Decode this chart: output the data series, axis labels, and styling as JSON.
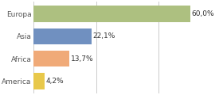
{
  "categories": [
    "America",
    "Africa",
    "Asia",
    "Europa"
  ],
  "values": [
    4.2,
    13.7,
    22.1,
    60.0
  ],
  "bar_colors": [
    "#e8c84a",
    "#f0aa78",
    "#7090c0",
    "#adc080"
  ],
  "labels": [
    "4,2%",
    "13,7%",
    "22,1%",
    "60,0%"
  ],
  "xlim": [
    0,
    72
  ],
  "background_color": "#ffffff",
  "grid_color": "#cccccc",
  "label_fontsize": 6.5,
  "tick_fontsize": 6.5,
  "bar_height": 0.72
}
